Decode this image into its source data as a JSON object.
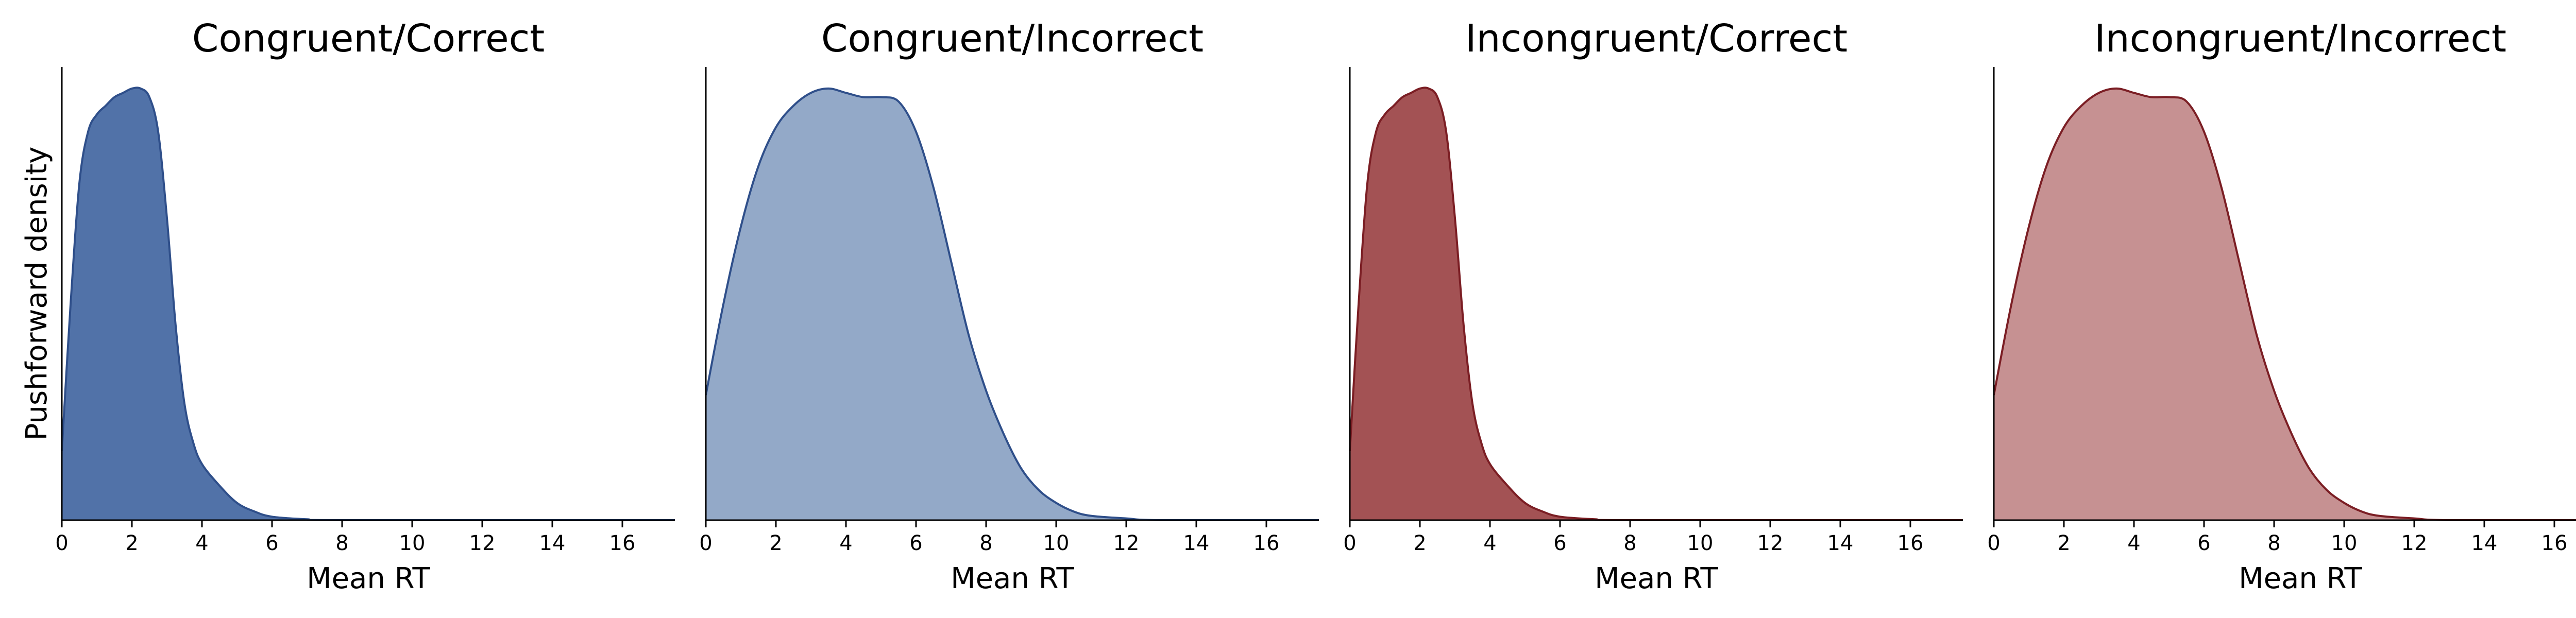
{
  "chart_data": [
    {
      "type": "area",
      "title": "Congruent/Correct",
      "xlabel": "Mean RT",
      "ylabel": "Pushforward density",
      "xlim": [
        0,
        17.5
      ],
      "ylim": [
        0,
        1.05
      ],
      "xticks": [
        "0",
        "2",
        "4",
        "6",
        "8",
        "10",
        "12",
        "14",
        "16"
      ],
      "grid": false,
      "legend": "none",
      "fill_color": "#5172a8",
      "line_color": "#2f4f8a",
      "x": [
        0,
        0.25,
        0.5,
        0.75,
        1.0,
        1.25,
        1.5,
        1.75,
        2.0,
        2.25,
        2.5,
        2.75,
        3.0,
        3.25,
        3.5,
        3.75,
        4.0,
        4.5,
        5.0,
        5.5,
        6.0,
        7.0,
        8.0,
        17.5
      ],
      "y": [
        0.16,
        0.5,
        0.78,
        0.9,
        0.94,
        0.96,
        0.98,
        0.99,
        1.0,
        1.0,
        0.98,
        0.9,
        0.7,
        0.45,
        0.27,
        0.18,
        0.13,
        0.08,
        0.04,
        0.02,
        0.008,
        0.002,
        0.0,
        0.0
      ]
    },
    {
      "type": "area",
      "title": "Congruent/Incorrect",
      "xlabel": "Mean RT",
      "ylabel": "",
      "xlim": [
        0,
        17.5
      ],
      "ylim": [
        0,
        1.05
      ],
      "xticks": [
        "0",
        "2",
        "4",
        "6",
        "8",
        "10",
        "12",
        "14",
        "16"
      ],
      "grid": false,
      "legend": "none",
      "fill_color": "#93a9c8",
      "line_color": "#2f4f8a",
      "x": [
        0,
        0.5,
        1.0,
        1.5,
        2.0,
        2.5,
        3.0,
        3.5,
        4.0,
        4.5,
        5.0,
        5.5,
        6.0,
        6.5,
        7.0,
        7.5,
        8.0,
        8.5,
        9.0,
        9.5,
        10.0,
        10.5,
        11.0,
        12.0,
        13.0,
        17.5
      ],
      "y": [
        0.29,
        0.5,
        0.68,
        0.82,
        0.91,
        0.96,
        0.99,
        1.0,
        0.99,
        0.98,
        0.98,
        0.97,
        0.9,
        0.77,
        0.6,
        0.43,
        0.3,
        0.2,
        0.12,
        0.07,
        0.04,
        0.02,
        0.01,
        0.004,
        0.0,
        0.0
      ]
    },
    {
      "type": "area",
      "title": "Incongruent/Correct",
      "xlabel": "Mean RT",
      "ylabel": "",
      "xlim": [
        0,
        17.5
      ],
      "ylim": [
        0,
        1.05
      ],
      "xticks": [
        "0",
        "2",
        "4",
        "6",
        "8",
        "10",
        "12",
        "14",
        "16"
      ],
      "grid": false,
      "legend": "none",
      "fill_color": "#a35254",
      "line_color": "#7b1e24",
      "x": [
        0,
        0.25,
        0.5,
        0.75,
        1.0,
        1.25,
        1.5,
        1.75,
        2.0,
        2.25,
        2.5,
        2.75,
        3.0,
        3.25,
        3.5,
        3.75,
        4.0,
        4.5,
        5.0,
        5.5,
        6.0,
        7.0,
        8.0,
        17.5
      ],
      "y": [
        0.16,
        0.5,
        0.78,
        0.9,
        0.94,
        0.96,
        0.98,
        0.99,
        1.0,
        1.0,
        0.98,
        0.9,
        0.7,
        0.45,
        0.27,
        0.18,
        0.13,
        0.08,
        0.04,
        0.02,
        0.008,
        0.002,
        0.0,
        0.0
      ]
    },
    {
      "type": "area",
      "title": "Incongruent/Incorrect",
      "xlabel": "Mean RT",
      "ylabel": "",
      "xlim": [
        0,
        17.5
      ],
      "ylim": [
        0,
        1.05
      ],
      "xticks": [
        "0",
        "2",
        "4",
        "6",
        "8",
        "10",
        "12",
        "14",
        "16"
      ],
      "grid": false,
      "legend": "none",
      "fill_color": "#c69192",
      "line_color": "#7b1e24",
      "x": [
        0,
        0.5,
        1.0,
        1.5,
        2.0,
        2.5,
        3.0,
        3.5,
        4.0,
        4.5,
        5.0,
        5.5,
        6.0,
        6.5,
        7.0,
        7.5,
        8.0,
        8.5,
        9.0,
        9.5,
        10.0,
        10.5,
        11.0,
        12.0,
        13.0,
        17.5
      ],
      "y": [
        0.29,
        0.5,
        0.68,
        0.82,
        0.91,
        0.96,
        0.99,
        1.0,
        0.99,
        0.98,
        0.98,
        0.97,
        0.9,
        0.77,
        0.6,
        0.43,
        0.3,
        0.2,
        0.12,
        0.07,
        0.04,
        0.02,
        0.01,
        0.004,
        0.0,
        0.0
      ]
    }
  ]
}
